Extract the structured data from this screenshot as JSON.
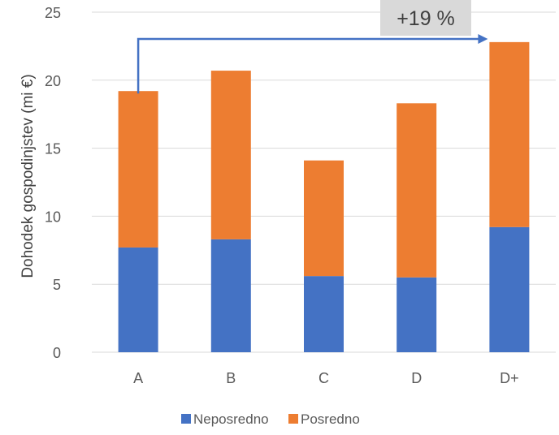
{
  "chart_data": {
    "type": "bar",
    "stacked": true,
    "categories": [
      "A",
      "B",
      "C",
      "D",
      "D+"
    ],
    "series": [
      {
        "name": "Neposredno",
        "values": [
          7.7,
          8.3,
          5.6,
          5.5,
          9.2
        ],
        "color": "#4472C4"
      },
      {
        "name": "Posredno",
        "values": [
          11.5,
          12.4,
          8.5,
          12.8,
          13.6
        ],
        "color": "#ED7D31"
      }
    ],
    "title": "",
    "xlabel": "",
    "ylabel": "Dohodek gospodinjstev (mi €)",
    "ylim": [
      0,
      25
    ],
    "yticks": [
      0,
      5,
      10,
      15,
      20,
      25
    ],
    "grid": true,
    "legend_position": "bottom",
    "annotation": {
      "text": "+19 %",
      "from_category": "A",
      "to_category": "D+",
      "arrow_color": "#4472C4",
      "box_color": "#D9D9D9"
    }
  }
}
